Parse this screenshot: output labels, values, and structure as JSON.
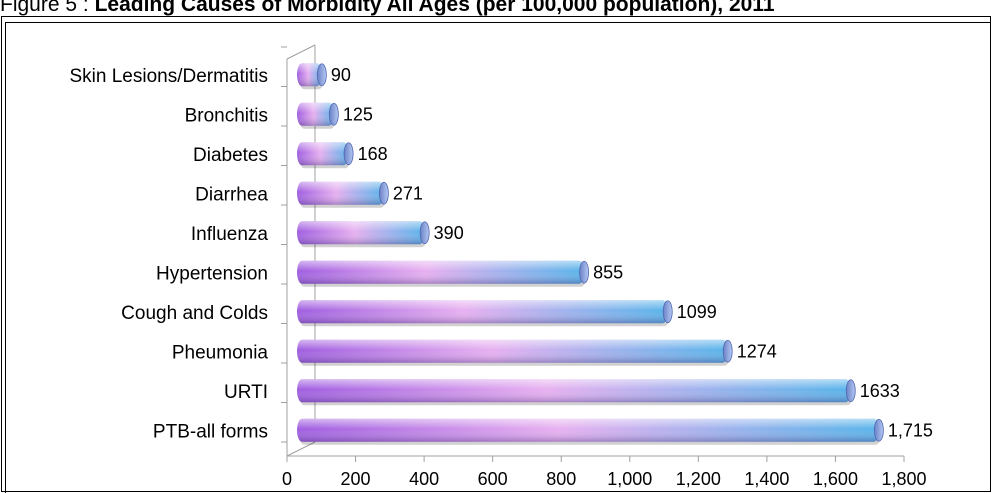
{
  "figure": {
    "prefix": "Figure 5 :",
    "title": "Leading Causes of Morbidity All Ages (per 100,000 population), 2011"
  },
  "chart_data": {
    "type": "bar",
    "orientation": "horizontal",
    "title": "",
    "xlabel": "",
    "ylabel": "",
    "categories": [
      "Skin Lesions/Dermatitis",
      "Bronchitis",
      "Diabetes",
      "Diarrhea",
      "Influenza",
      "Hypertension",
      "Cough and Colds",
      "Pheumonia",
      "URTI",
      "PTB-all forms"
    ],
    "values": [
      90,
      125,
      168,
      271,
      390,
      855,
      1099,
      1274,
      1633,
      1715
    ],
    "value_labels": [
      "90",
      "125",
      "168",
      "271",
      "390",
      "855",
      "1099",
      "1274",
      "1633",
      "1,715"
    ],
    "xlim": [
      0,
      1800
    ],
    "x_ticks": [
      0,
      200,
      400,
      600,
      800,
      1000,
      1200,
      1400,
      1600,
      1800
    ],
    "x_tick_labels": [
      "0",
      "200",
      "400",
      "600",
      "800",
      "1,000",
      "1,200",
      "1,400",
      "1,600",
      "1,800"
    ],
    "grid": false,
    "legend": "none",
    "colors": {
      "bar_left": "#a05ee0",
      "bar_mid": "#e7b0f0",
      "bar_right": "#58b4ea",
      "bar_cap": "#8fa9e6",
      "axis": "#a0a0a0"
    }
  }
}
